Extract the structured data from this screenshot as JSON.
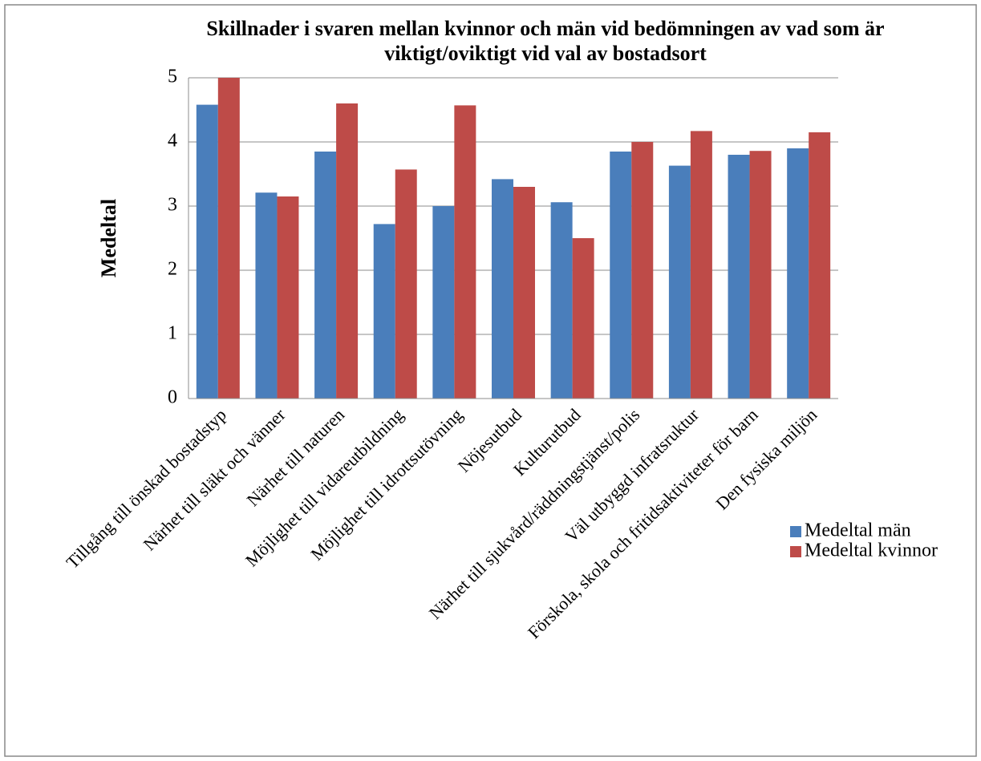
{
  "chart_data": {
    "type": "bar",
    "title": "Skillnader i svaren mellan kvinnor och män vid bedömningen av vad som är viktigt/oviktigt vid val av bostadsort",
    "y_label": "Medeltal",
    "categories": [
      "Tillgång till önskad bostadstyp",
      "Närhet till släkt och vänner",
      "Närhet till naturen",
      "Möjlighet till vidareutbildning",
      "Möjlighet till idrottsutövning",
      "Nöjesutbud",
      "Kulturutbud",
      "Närhet till sjukvård/räddningstjänst/polis",
      "Väl utbyggd infratsruktur",
      "Förskola, skola och fritidsaktiviteter för barn",
      "Den fysiska miljön"
    ],
    "series": [
      {
        "name": "Medeltal män",
        "color": "#4a7ebb",
        "values": [
          4.58,
          3.21,
          3.85,
          2.72,
          3.0,
          3.42,
          3.06,
          3.85,
          3.63,
          3.8,
          3.9
        ]
      },
      {
        "name": "Medeltal kvinnor",
        "color": "#be4b48",
        "values": [
          5.0,
          3.15,
          4.6,
          3.57,
          4.57,
          3.3,
          2.5,
          4.0,
          4.17,
          3.86,
          4.15
        ]
      }
    ],
    "ylim": [
      0,
      5
    ],
    "yticks": [
      0,
      1,
      2,
      3,
      4,
      5
    ],
    "grid": true,
    "legend": "right"
  }
}
